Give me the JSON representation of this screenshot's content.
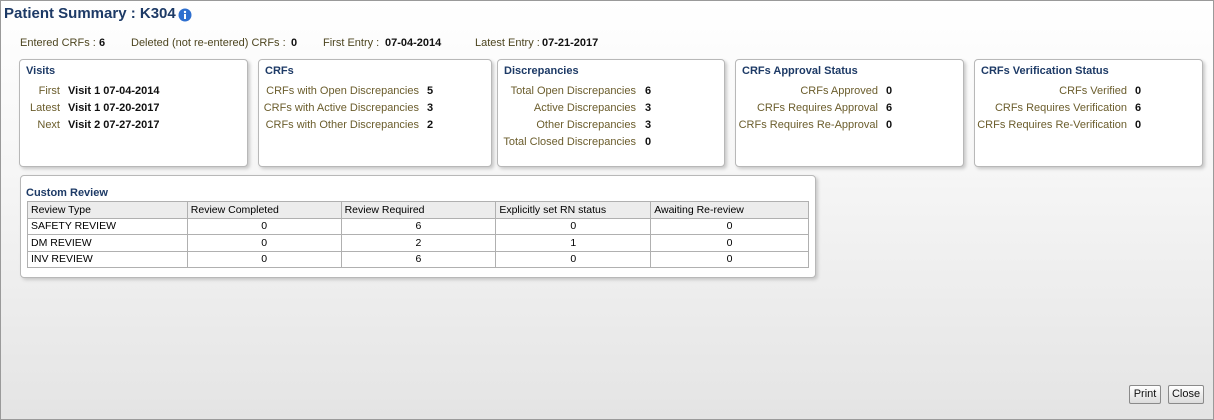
{
  "header": {
    "title": "Patient Summary : K304"
  },
  "summary": [
    {
      "label": "Entered CRFs :",
      "value": 6
    },
    {
      "label": "Deleted (not re-entered) CRFs :",
      "value": 0
    },
    {
      "label": "First Entry :",
      "value": "07-04-2014"
    },
    {
      "label": "Latest Entry :",
      "value": "07-21-2017"
    }
  ],
  "panels": [
    {
      "title": "Visits",
      "rows": [
        {
          "label": "First",
          "value": "Visit 1 07-04-2014"
        },
        {
          "label": "Latest",
          "value": "Visit 1 07-20-2017"
        },
        {
          "label": "Next",
          "value": "Visit 2 07-27-2017"
        }
      ]
    },
    {
      "title": "CRFs",
      "rows": [
        {
          "label": "CRFs with Open Discrepancies",
          "value": 5
        },
        {
          "label": "CRFs with Active Discrepancies",
          "value": 3
        },
        {
          "label": "CRFs with Other Discrepancies",
          "value": 2
        }
      ]
    },
    {
      "title": "Discrepancies",
      "rows": [
        {
          "label": "Total Open Discrepancies",
          "value": 6
        },
        {
          "label": "Active Discrepancies",
          "value": 3
        },
        {
          "label": "Other Discrepancies",
          "value": 3
        },
        {
          "label": "Total Closed Discrepancies",
          "value": 0
        }
      ]
    },
    {
      "title": "CRFs Approval Status",
      "rows": [
        {
          "label": "CRFs Approved",
          "value": 0
        },
        {
          "label": "CRFs Requires Approval",
          "value": 6
        },
        {
          "label": "CRFs Requires Re-Approval",
          "value": 0
        }
      ]
    },
    {
      "title": "CRFs Verification Status",
      "rows": [
        {
          "label": "CRFs Verified",
          "value": 0
        },
        {
          "label": "CRFs Requires Verification",
          "value": 6
        },
        {
          "label": "CRFs Requires Re-Verification",
          "value": 0
        }
      ]
    }
  ],
  "custom_review": {
    "title": "Custom Review",
    "columns": [
      "Review Type",
      "Review Completed",
      "Review Required",
      "Explicitly set RN status",
      "Awaiting Re-review"
    ],
    "rows": [
      [
        "SAFETY REVIEW",
        0,
        6,
        0,
        0
      ],
      [
        "DM REVIEW",
        0,
        2,
        1,
        0
      ],
      [
        "INV REVIEW",
        0,
        6,
        0,
        0
      ]
    ]
  },
  "buttons": [
    "Print",
    "Close"
  ]
}
